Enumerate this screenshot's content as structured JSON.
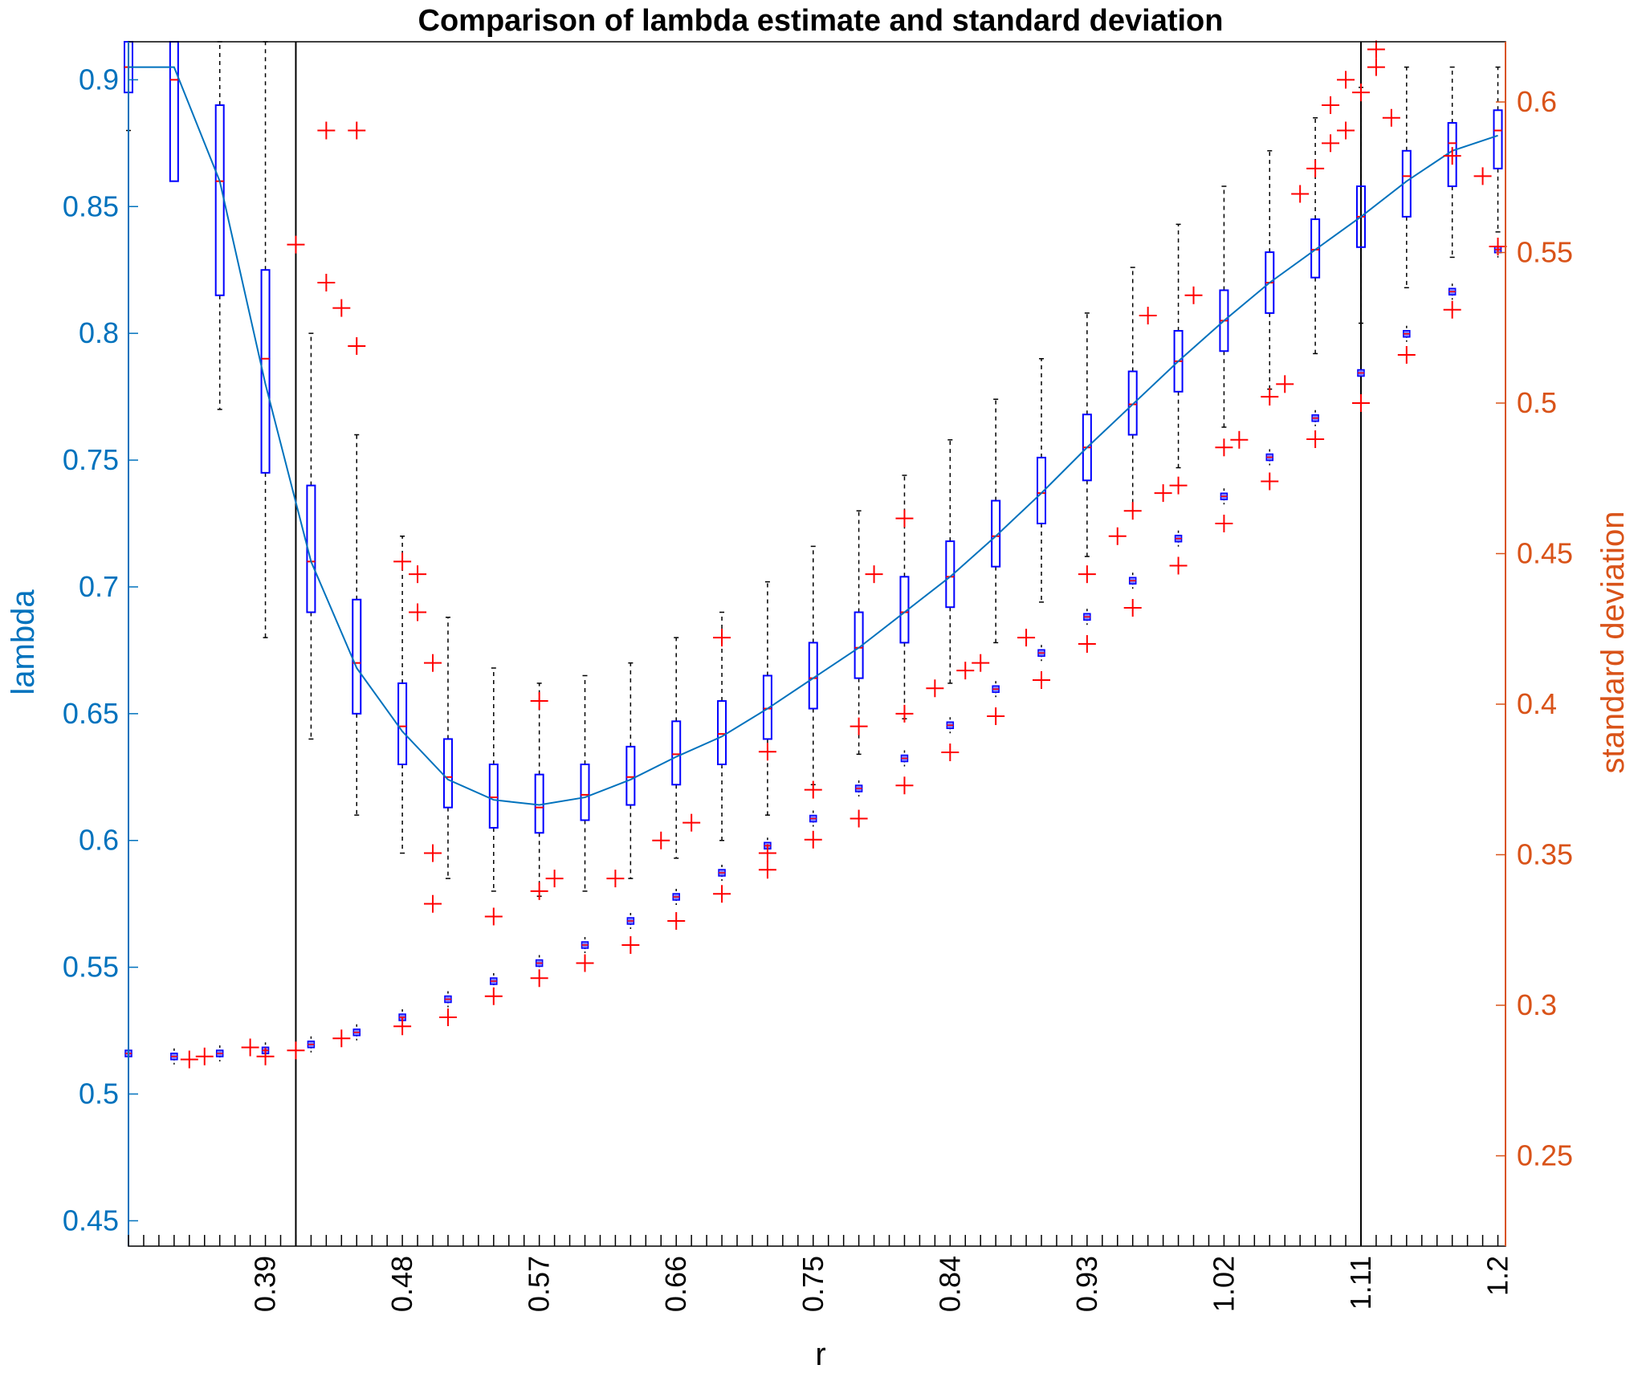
{
  "colors": {
    "left_axis": "#0072BD",
    "right_axis": "#D95319",
    "box": "#0000FF",
    "median": "#FF0000",
    "outlier": "#FF0000",
    "whisker": "#000000",
    "mean_line": "#0072BD",
    "vline": "#000000"
  },
  "chart_data": {
    "type": "box",
    "title": "Comparison of lambda estimate and standard deviation",
    "xlabel": "r",
    "ylabel_left": "lambda",
    "ylabel_right": "standard deviation",
    "ylim_left": [
      0.44,
      0.915
    ],
    "ylim_right": [
      0.22,
      0.62
    ],
    "xlim": [
      0.3,
      1.205
    ],
    "yticks_left": [
      "0.45",
      "0.5",
      "0.55",
      "0.6",
      "0.65",
      "0.7",
      "0.75",
      "0.8",
      "0.85",
      "0.9"
    ],
    "yticks_right": [
      "0.25",
      "0.3",
      "0.35",
      "0.4",
      "0.45",
      "0.5",
      "0.55",
      "0.6"
    ],
    "xticks": [
      "0.39",
      "0.48",
      "0.57",
      "0.66",
      "0.75",
      "0.84",
      "0.93",
      "1.02",
      "1.11",
      "1.2"
    ],
    "vertical_lines_x": [
      0.41,
      1.11
    ],
    "lambda_series": {
      "name": "lambda",
      "axis": "left",
      "x": [
        0.3,
        0.33,
        0.36,
        0.39,
        0.42,
        0.45,
        0.48,
        0.51,
        0.54,
        0.57,
        0.6,
        0.63,
        0.66,
        0.69,
        0.72,
        0.75,
        0.78,
        0.81,
        0.84,
        0.87,
        0.9,
        0.93,
        0.96,
        0.99,
        1.02,
        1.05,
        1.08,
        1.11,
        1.14,
        1.17,
        1.2
      ],
      "median": [
        0.905,
        0.9,
        0.86,
        0.79,
        0.71,
        0.67,
        0.645,
        0.625,
        0.617,
        0.613,
        0.618,
        0.625,
        0.634,
        0.642,
        0.652,
        0.664,
        0.676,
        0.69,
        0.704,
        0.72,
        0.737,
        0.755,
        0.772,
        0.789,
        0.805,
        0.82,
        0.833,
        0.846,
        0.862,
        0.875,
        0.88
      ],
      "q1": [
        0.895,
        0.86,
        0.815,
        0.745,
        0.69,
        0.65,
        0.63,
        0.613,
        0.605,
        0.603,
        0.608,
        0.614,
        0.622,
        0.63,
        0.64,
        0.652,
        0.664,
        0.678,
        0.692,
        0.708,
        0.725,
        0.742,
        0.76,
        0.777,
        0.793,
        0.808,
        0.822,
        0.834,
        0.846,
        0.858,
        0.865
      ],
      "q3": [
        0.915,
        0.915,
        0.89,
        0.825,
        0.74,
        0.695,
        0.662,
        0.64,
        0.63,
        0.626,
        0.63,
        0.637,
        0.647,
        0.655,
        0.665,
        0.678,
        0.69,
        0.704,
        0.718,
        0.734,
        0.751,
        0.768,
        0.785,
        0.801,
        0.817,
        0.832,
        0.845,
        0.858,
        0.872,
        0.883,
        0.888
      ],
      "whisker_low": [
        0.88,
        0.86,
        0.77,
        0.68,
        0.64,
        0.61,
        0.595,
        0.585,
        0.58,
        0.578,
        0.58,
        0.585,
        0.593,
        0.6,
        0.61,
        0.622,
        0.634,
        0.648,
        0.662,
        0.678,
        0.694,
        0.712,
        0.73,
        0.747,
        0.763,
        0.778,
        0.792,
        0.804,
        0.818,
        0.83,
        0.84
      ],
      "whisker_high": [
        0.915,
        0.915,
        0.915,
        0.915,
        0.8,
        0.76,
        0.72,
        0.688,
        0.668,
        0.662,
        0.665,
        0.67,
        0.68,
        0.69,
        0.702,
        0.716,
        0.73,
        0.744,
        0.758,
        0.774,
        0.79,
        0.808,
        0.826,
        0.843,
        0.858,
        0.872,
        0.885,
        0.897,
        0.905,
        0.905,
        0.905
      ],
      "mean": [
        0.905,
        0.905,
        0.86,
        0.78,
        0.71,
        0.668,
        0.643,
        0.624,
        0.616,
        0.614,
        0.617,
        0.624,
        0.633,
        0.641,
        0.652,
        0.664,
        0.676,
        0.69,
        0.704,
        0.72,
        0.737,
        0.755,
        0.772,
        0.789,
        0.805,
        0.82,
        0.833,
        0.846,
        0.86,
        0.872,
        0.878
      ],
      "outliers": [
        [
          0.41,
          0.835
        ],
        [
          0.43,
          0.88
        ],
        [
          0.45,
          0.88
        ],
        [
          0.43,
          0.82
        ],
        [
          0.44,
          0.81
        ],
        [
          0.45,
          0.795
        ],
        [
          0.48,
          0.71
        ],
        [
          0.49,
          0.705
        ],
        [
          0.49,
          0.69
        ],
        [
          0.5,
          0.67
        ],
        [
          0.5,
          0.595
        ],
        [
          0.5,
          0.575
        ],
        [
          0.54,
          0.57
        ],
        [
          0.57,
          0.655
        ],
        [
          0.57,
          0.58
        ],
        [
          0.58,
          0.585
        ],
        [
          0.62,
          0.585
        ],
        [
          0.65,
          0.6
        ],
        [
          0.67,
          0.607
        ],
        [
          0.69,
          0.68
        ],
        [
          0.72,
          0.635
        ],
        [
          0.72,
          0.595
        ],
        [
          0.75,
          0.62
        ],
        [
          0.78,
          0.645
        ],
        [
          0.79,
          0.705
        ],
        [
          0.81,
          0.65
        ],
        [
          0.81,
          0.727
        ],
        [
          0.83,
          0.66
        ],
        [
          0.85,
          0.667
        ],
        [
          0.86,
          0.67
        ],
        [
          0.89,
          0.68
        ],
        [
          0.93,
          0.705
        ],
        [
          0.95,
          0.72
        ],
        [
          0.96,
          0.73
        ],
        [
          0.97,
          0.807
        ],
        [
          0.98,
          0.737
        ],
        [
          0.99,
          0.74
        ],
        [
          1.0,
          0.815
        ],
        [
          1.02,
          0.755
        ],
        [
          1.03,
          0.758
        ],
        [
          1.05,
          0.775
        ],
        [
          1.06,
          0.78
        ],
        [
          1.07,
          0.855
        ],
        [
          1.08,
          0.865
        ],
        [
          1.09,
          0.875
        ],
        [
          1.09,
          0.89
        ],
        [
          1.1,
          0.9
        ],
        [
          1.11,
          0.895
        ],
        [
          1.12,
          0.905
        ],
        [
          1.12,
          0.912
        ],
        [
          1.1,
          0.88
        ],
        [
          1.13,
          0.885
        ],
        [
          1.17,
          0.87
        ],
        [
          1.19,
          0.862
        ]
      ]
    },
    "sd_series": {
      "name": "standard deviation",
      "axis": "right",
      "x": [
        0.3,
        0.33,
        0.36,
        0.39,
        0.42,
        0.45,
        0.48,
        0.51,
        0.54,
        0.57,
        0.6,
        0.63,
        0.66,
        0.69,
        0.72,
        0.75,
        0.78,
        0.81,
        0.84,
        0.87,
        0.9,
        0.93,
        0.96,
        0.99,
        1.02,
        1.05,
        1.08,
        1.11,
        1.14,
        1.17,
        1.2
      ],
      "median": [
        0.284,
        0.283,
        0.284,
        0.285,
        0.287,
        0.291,
        0.296,
        0.302,
        0.308,
        0.314,
        0.32,
        0.328,
        0.336,
        0.344,
        0.353,
        0.362,
        0.372,
        0.382,
        0.393,
        0.405,
        0.417,
        0.429,
        0.441,
        0.455,
        0.469,
        0.482,
        0.495,
        0.51,
        0.523,
        0.537,
        0.551
      ],
      "outliers": [
        [
          0.34,
          0.282
        ],
        [
          0.35,
          0.283
        ],
        [
          0.38,
          0.286
        ],
        [
          0.39,
          0.283
        ],
        [
          0.41,
          0.285
        ],
        [
          0.44,
          0.289
        ],
        [
          0.48,
          0.293
        ],
        [
          0.51,
          0.296
        ],
        [
          0.54,
          0.303
        ],
        [
          0.57,
          0.309
        ],
        [
          0.6,
          0.314
        ],
        [
          0.63,
          0.32
        ],
        [
          0.66,
          0.328
        ],
        [
          0.69,
          0.337
        ],
        [
          0.72,
          0.345
        ],
        [
          0.75,
          0.355
        ],
        [
          0.78,
          0.362
        ],
        [
          0.81,
          0.373
        ],
        [
          0.84,
          0.384
        ],
        [
          0.87,
          0.396
        ],
        [
          0.9,
          0.408
        ],
        [
          0.93,
          0.42
        ],
        [
          0.96,
          0.432
        ],
        [
          0.99,
          0.446
        ],
        [
          1.02,
          0.46
        ],
        [
          1.05,
          0.474
        ],
        [
          1.08,
          0.488
        ],
        [
          1.11,
          0.5
        ],
        [
          1.14,
          0.516
        ],
        [
          1.17,
          0.531
        ],
        [
          1.2,
          0.552
        ]
      ]
    }
  }
}
